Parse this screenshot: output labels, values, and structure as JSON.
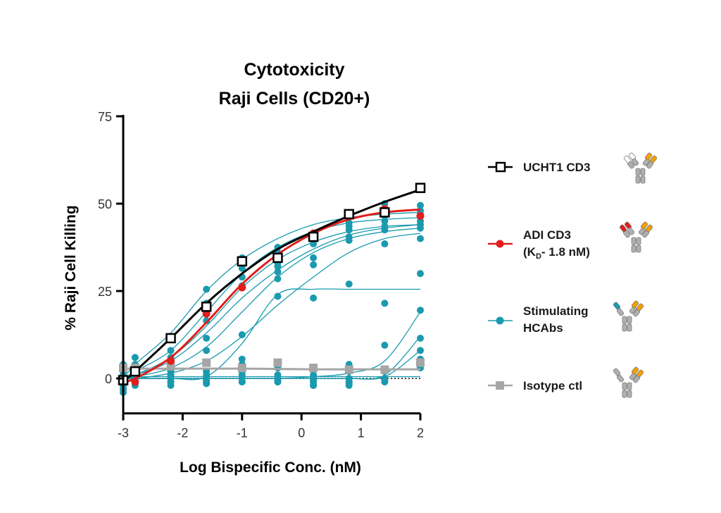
{
  "chart_data": {
    "type": "scatter",
    "title": [
      "Cytotoxicity",
      "Raji Cells (CD20+)"
    ],
    "xlabel": "Log Bispecific Conc. (nM)",
    "ylabel": "% Raji Cell Killing",
    "xlim": [
      -3,
      2
    ],
    "ylim": [
      -10,
      75
    ],
    "x_ticks": [
      "-3",
      "-2",
      "-1",
      "0",
      "1",
      "2"
    ],
    "y_ticks": [
      "0",
      "25",
      "50",
      "75"
    ],
    "grid": false,
    "legend_position": "right",
    "x": [
      -3,
      -2.8,
      -2.2,
      -1.6,
      -1,
      -0.4,
      0.2,
      0.8,
      1.4,
      2
    ],
    "series": [
      {
        "name": "UCHT1 CD3",
        "marker": "open-square",
        "color": "#000000",
        "values": [
          -0.5,
          2,
          11.5,
          20.5,
          33.5,
          34.5,
          40.5,
          47,
          47.5,
          54.5
        ],
        "fit": [
          -1,
          2,
          11.5,
          21.5,
          30,
          37,
          42,
          46.5,
          50.5,
          54
        ]
      },
      {
        "name": "ADI CD3",
        "name_lines": [
          "ADI CD3",
          "(K",
          "D",
          "- 1.8 nM)"
        ],
        "marker": "filled-circle",
        "color": "#e11d1d",
        "values": [
          -0.5,
          -1,
          5,
          18.5,
          26,
          34.5,
          41.5,
          47,
          48.5,
          46.5
        ],
        "fit": [
          -1,
          0,
          6,
          16,
          27,
          35.5,
          41.5,
          45.5,
          47.5,
          48.3
        ]
      },
      {
        "name": "Stimulating HCAbs",
        "name_lines": [
          "Stimulating",
          "HCAbs"
        ],
        "marker": "filled-circle",
        "color": "#1a9aae",
        "curves": [
          [
            0,
            4,
            13,
            25,
            34,
            40,
            44,
            46,
            47,
            47.5
          ],
          [
            0,
            2,
            8,
            19,
            30,
            37.5,
            42,
            44.5,
            45.5,
            46
          ],
          [
            0,
            1,
            6,
            15,
            26,
            34,
            39,
            42,
            43.5,
            44
          ],
          [
            0,
            1,
            5,
            13,
            23,
            31,
            37,
            41,
            43,
            44
          ],
          [
            0,
            0.5,
            3,
            9,
            19,
            29,
            36,
            40,
            42,
            43
          ],
          [
            0,
            0,
            1.5,
            5,
            12,
            21,
            29,
            36,
            40,
            41.5
          ],
          [
            0,
            0,
            0,
            0.5,
            10,
            24,
            25.5,
            25.5,
            25.5,
            25.5
          ],
          [
            0,
            0,
            0,
            0,
            0,
            0,
            0.5,
            1.5,
            5,
            19
          ],
          [
            0,
            0,
            0,
            0,
            0,
            0,
            0,
            0,
            1,
            12
          ],
          [
            0,
            0,
            0,
            0,
            0,
            0,
            0,
            0,
            0.5,
            8
          ],
          [
            0.5,
            0.5,
            0.5,
            0.5,
            0.5,
            0.5,
            0.5,
            0.5,
            0.5,
            0.5
          ]
        ],
        "points": [
          [
            3,
            6,
            8,
            25.5,
            33.5,
            37.5,
            40.5,
            44.5,
            50,
            49.5
          ],
          [
            1,
            4,
            6,
            21.5,
            34.5,
            36,
            38.5,
            43.5,
            48.5,
            48
          ],
          [
            0,
            3,
            4,
            16.5,
            31.5,
            33,
            34.5,
            42.5,
            46.5,
            47
          ],
          [
            -1,
            2,
            2,
            11.5,
            29,
            32,
            32.5,
            40.5,
            45,
            45
          ],
          [
            -2,
            1,
            1,
            8,
            26.5,
            30.5,
            23,
            39.5,
            43.5,
            44
          ],
          [
            -4,
            0,
            0,
            2,
            12.5,
            28.5,
            3,
            27,
            42.5,
            43
          ],
          [
            4,
            -1,
            -1,
            1,
            5.5,
            23.5,
            1,
            4,
            38.5,
            40
          ],
          [
            2,
            2,
            2,
            0,
            4,
            3,
            0,
            2,
            21.5,
            30
          ],
          [
            1,
            1,
            1,
            -0.5,
            2,
            1,
            -1,
            0,
            9.5,
            19.5
          ],
          [
            0,
            0,
            0,
            -1,
            1,
            0,
            -2,
            -1,
            2,
            11.5
          ],
          [
            -1,
            -1,
            -1,
            0,
            0,
            -1,
            -2,
            -1,
            0,
            8
          ],
          [
            -2,
            -2,
            -2,
            -1,
            -1,
            -0.5,
            -1,
            -1.5,
            -1,
            5.5
          ],
          [
            -3,
            -1,
            -1,
            -1.5,
            -1,
            -1,
            -0.5,
            -2,
            -0.5,
            3
          ]
        ]
      },
      {
        "name": "Isotype ctl",
        "marker": "filled-square",
        "color": "#a6a6a6",
        "values": [
          3,
          3,
          3.5,
          4.5,
          3,
          4.5,
          3,
          2.5,
          2.5,
          4.5
        ],
        "fit": [
          2.8,
          2.8,
          2.8,
          2.8,
          2.8,
          2.7,
          2.6,
          2.6,
          2.6,
          2.6
        ]
      }
    ],
    "baseline": {
      "value": 0,
      "style": "dotted"
    }
  }
}
